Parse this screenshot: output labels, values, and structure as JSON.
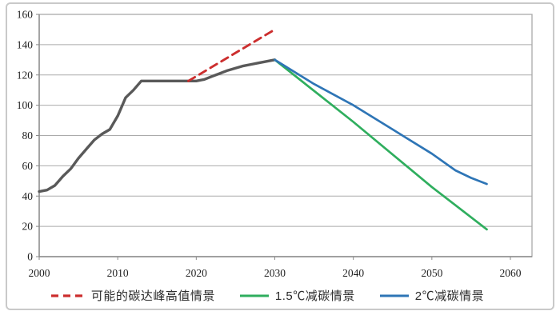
{
  "page": {
    "background": "#ffffff",
    "frame_border_color": "#c9c9c9"
  },
  "chart_data": {
    "type": "line",
    "title": "",
    "xlabel": "",
    "ylabel": "",
    "grid": true,
    "legend_position": "bottom",
    "x_axis": {
      "ticks": [
        2000,
        2010,
        2020,
        2030,
        2040,
        2050,
        2060
      ],
      "range": [
        2000,
        2062.7
      ]
    },
    "y_axis": {
      "ticks": [
        0,
        20,
        40,
        60,
        80,
        100,
        120,
        140,
        160
      ],
      "range": [
        0,
        160
      ]
    },
    "colors": {
      "gridline": "#ababab",
      "plot_border": "#a9a9a9",
      "axis": "#8a8a8a",
      "tick_label": "#1f1f1f"
    },
    "series": [
      {
        "id": "historical-emissions-line",
        "label": "",
        "color": "#595959",
        "style": "solid",
        "width": 3.4,
        "points": [
          [
            2000,
            43
          ],
          [
            2001,
            44
          ],
          [
            2002,
            47
          ],
          [
            2003,
            53
          ],
          [
            2004,
            58
          ],
          [
            2005,
            65
          ],
          [
            2006,
            71
          ],
          [
            2007,
            77
          ],
          [
            2008,
            81
          ],
          [
            2009,
            84
          ],
          [
            2010,
            93
          ],
          [
            2011,
            105
          ],
          [
            2012,
            110
          ],
          [
            2013,
            116
          ],
          [
            2016,
            116
          ],
          [
            2020,
            116
          ],
          [
            2021,
            117
          ],
          [
            2022,
            119
          ],
          [
            2023,
            121
          ],
          [
            2024,
            123
          ],
          [
            2025,
            124.5
          ],
          [
            2026,
            126
          ],
          [
            2027,
            127
          ],
          [
            2028,
            128
          ],
          [
            2029,
            129
          ],
          [
            2030,
            130
          ]
        ]
      },
      {
        "id": "possible-peak-high-scenario",
        "label": "可能的碳达峰高值情景",
        "color": "#cc2e2e",
        "style": "dashed",
        "width": 2.9,
        "points": [
          [
            2019,
            116
          ],
          [
            2030,
            150
          ]
        ]
      },
      {
        "id": "scenario-1-5c-reduction",
        "label": "1.5℃减碳情景",
        "color": "#2fae5e",
        "style": "solid",
        "width": 2.7,
        "points": [
          [
            2030,
            130
          ],
          [
            2040,
            89
          ],
          [
            2050,
            46
          ],
          [
            2057,
            18
          ]
        ]
      },
      {
        "id": "scenario-2c-reduction",
        "label": "2℃减碳情景",
        "color": "#2e75b6",
        "style": "solid",
        "width": 2.7,
        "points": [
          [
            2030,
            130
          ],
          [
            2035,
            114
          ],
          [
            2040,
            100
          ],
          [
            2045,
            84
          ],
          [
            2050,
            68
          ],
          [
            2053,
            57
          ],
          [
            2055,
            52
          ],
          [
            2057,
            48
          ]
        ]
      }
    ]
  }
}
